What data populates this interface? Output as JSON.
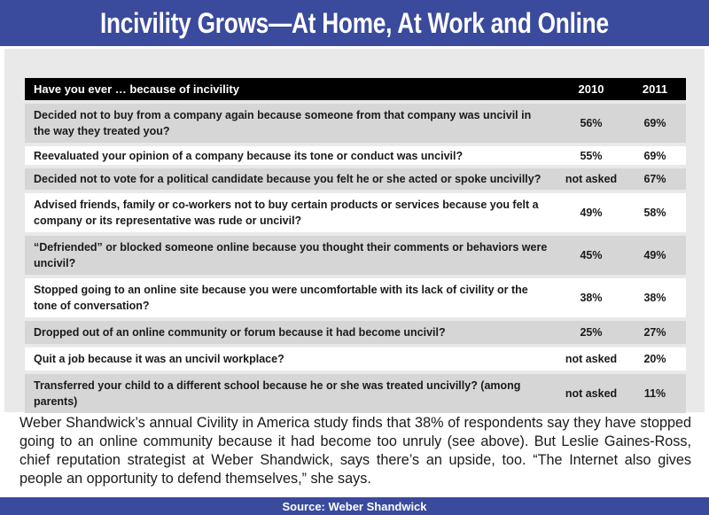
{
  "title": "Incivility Grows—At Home, At Work and Online",
  "colors": {
    "banner": "#3a4a9c",
    "row_shade": "#d6d6d6",
    "header": "#000000"
  },
  "chart_data": {
    "type": "table",
    "columns": [
      "Have you ever … because of incivility",
      "2010",
      "2011"
    ],
    "rows": [
      {
        "question": "Decided not to buy from a company again because someone from that company was uncivil in the way they treated you?",
        "y2010": "56%",
        "y2011": "69%"
      },
      {
        "question": "Reevaluated your opinion of a company because its tone or conduct was uncivil?",
        "y2010": "55%",
        "y2011": "69%"
      },
      {
        "question": "Decided not to vote for a political candidate because you felt he or she acted or spoke uncivilly?",
        "y2010": "not asked",
        "y2011": "67%"
      },
      {
        "question": "Advised friends, family or co-workers not to buy certain products or services because you felt a company or its representative was rude or uncivil?",
        "y2010": "49%",
        "y2011": "58%"
      },
      {
        "question": "“Defriended” or blocked someone online because you thought their comments or behaviors were uncivil?",
        "y2010": "45%",
        "y2011": "49%"
      },
      {
        "question": "Stopped going to an online site because you were uncomfortable with its lack of civility or the tone of conversation?",
        "y2010": "38%",
        "y2011": "38%"
      },
      {
        "question": "Dropped out of an online community or forum because it had become uncivil?",
        "y2010": "25%",
        "y2011": "27%"
      },
      {
        "question": "Quit a job because it was an uncivil workplace?",
        "y2010": "not asked",
        "y2011": "20%"
      },
      {
        "question": "Transferred your child to a different school because he or she was treated uncivilly? (among parents)",
        "y2010": "not asked",
        "y2011": "11%"
      }
    ]
  },
  "body_text": "Weber Shandwick’s annual Civility in America study finds that 38% of respondents say they have stopped going to an online community because it had become too unruly (see above). But Leslie Gaines-Ross, chief reputation strategist at Weber Shandwick, says there’s an upside, too. “The Internet also gives people an opportunity to defend themselves,” she says.",
  "source": "Source: Weber Shandwick"
}
